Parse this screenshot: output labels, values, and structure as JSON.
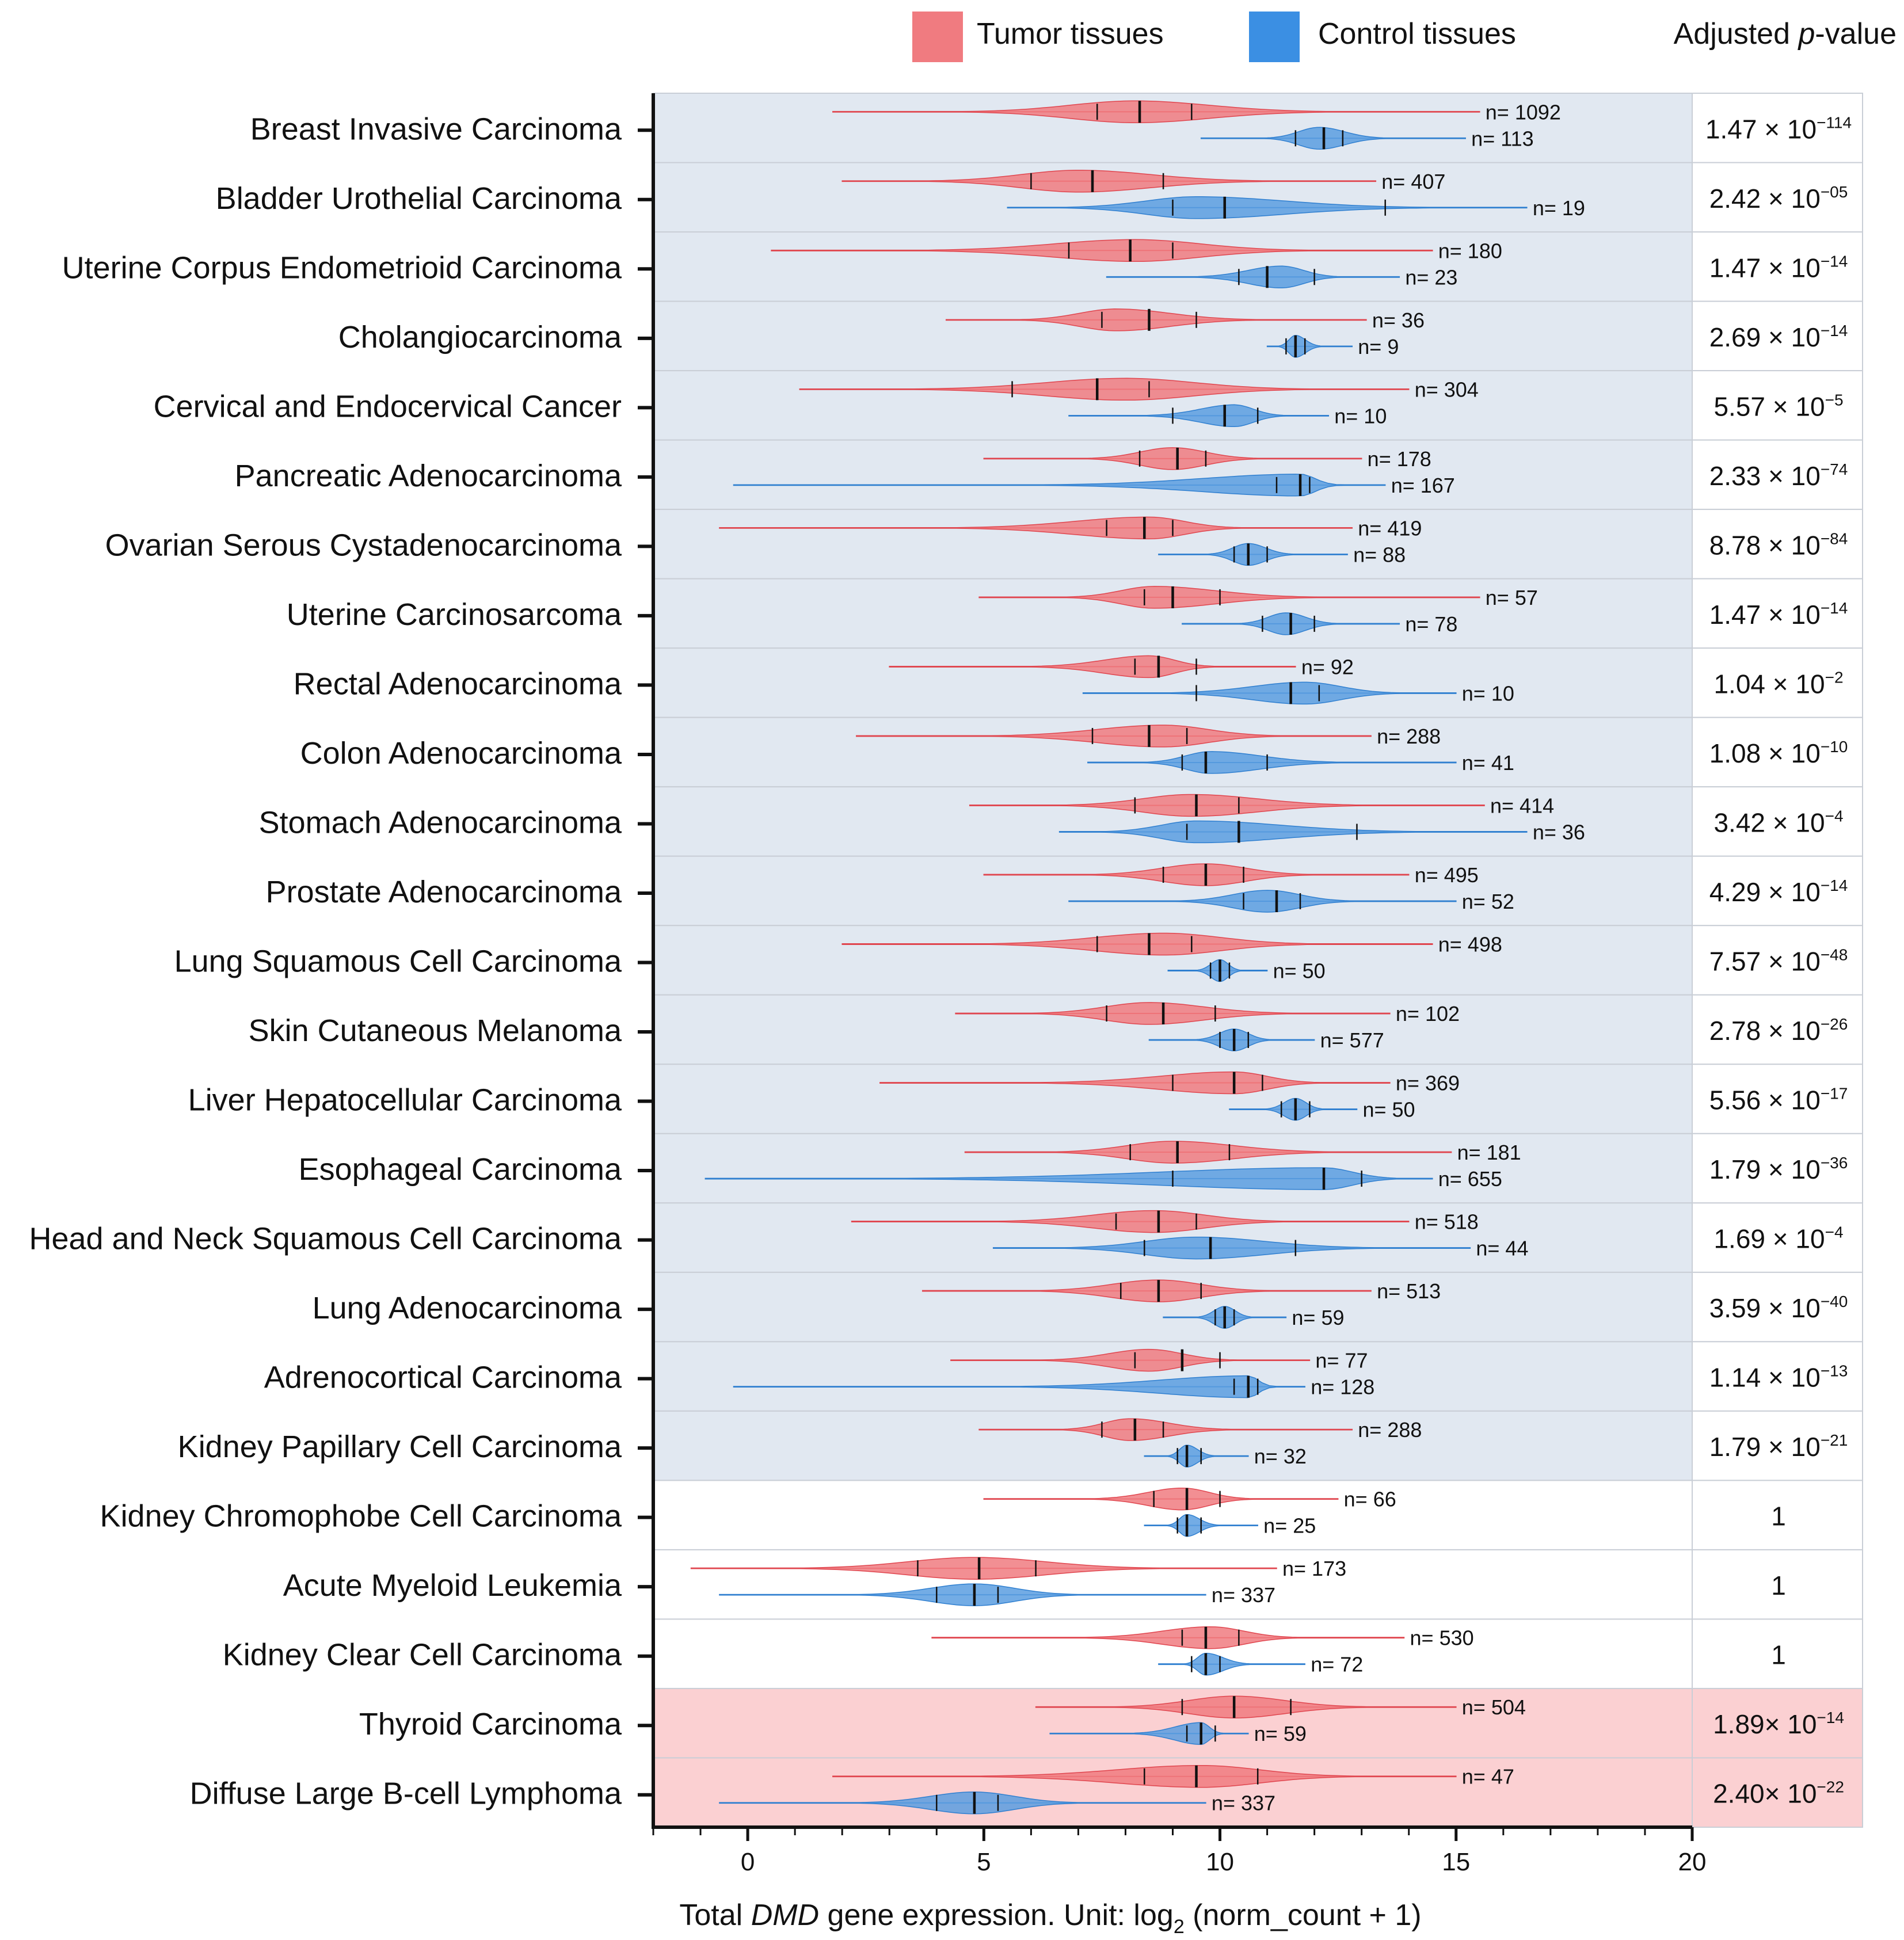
{
  "legend": {
    "tumor_label": "Tumor tissues",
    "control_label": "Control tissues",
    "pvalue_header_prefix": "Adjusted ",
    "pvalue_header_italic": "p",
    "pvalue_header_suffix": "-value"
  },
  "colors": {
    "tumor": "#f07b80",
    "tumor_stroke": "#e0454e",
    "control": "#5b9ee0",
    "control_stroke": "#2f7fd0",
    "band_significant": "#e1e8f1",
    "band_neutral": "#ffffff",
    "band_reverse": "#fbd0d2",
    "grid": "#c9ced6"
  },
  "chart_data": {
    "type": "violin",
    "title": "",
    "xlabel_prefix": "Total ",
    "xlabel_italic": "DMD",
    "xlabel_mid": " gene expression. Unit: log",
    "xlabel_sub": "2",
    "xlabel_suffix": " (norm_count + 1)",
    "xlim": [
      -2,
      20
    ],
    "xticks": [
      0,
      5,
      10,
      15,
      20
    ],
    "legend_position": "top",
    "rows": [
      {
        "name": "Breast Invasive Carcinoma",
        "group": "significant",
        "p": {
          "mant": "1.47",
          "sep": " × 10",
          "exp": "−114"
        },
        "tumor": {
          "n": "n= 1092",
          "min": 1.8,
          "max": 15.5,
          "q1": 7.4,
          "median": 8.3,
          "q3": 9.4,
          "mode": 8.2
        },
        "control": {
          "n": "n= 113",
          "min": 9.6,
          "max": 15.2,
          "q1": 11.6,
          "median": 12.2,
          "q3": 12.6,
          "mode": 12.1
        }
      },
      {
        "name": "Bladder Urothelial Carcinoma ",
        "group": "significant",
        "p": {
          "mant": "2.42",
          "sep": " × 10",
          "exp": "−05"
        },
        "tumor": {
          "n": "n= 407",
          "min": 2.0,
          "max": 13.3,
          "q1": 6.0,
          "median": 7.3,
          "q3": 8.8,
          "mode": 7.0
        },
        "control": {
          "n": "n= 19",
          "min": 5.5,
          "max": 16.5,
          "q1": 9.0,
          "median": 10.1,
          "q3": 13.5,
          "mode": 9.5
        }
      },
      {
        "name": "Uterine Corpus Endometrioid Carcinoma",
        "group": "significant",
        "p": {
          "mant": "1.47",
          "sep": " × 10",
          "exp": "−14"
        },
        "tumor": {
          "n": "n= 180",
          "min": 0.5,
          "max": 14.5,
          "q1": 6.8,
          "median": 8.1,
          "q3": 9.0,
          "mode": 8.2
        },
        "control": {
          "n": "n= 23",
          "min": 7.6,
          "max": 13.8,
          "q1": 10.4,
          "median": 11.0,
          "q3": 12.0,
          "mode": 11.3
        }
      },
      {
        "name": "Cholangiocarcinoma",
        "group": "significant",
        "p": {
          "mant": "2.69",
          "sep": " × 10",
          "exp": "−14"
        },
        "tumor": {
          "n": "n= 36",
          "min": 4.2,
          "max": 13.1,
          "q1": 7.5,
          "median": 8.5,
          "q3": 9.5,
          "mode": 7.8
        },
        "control": {
          "n": "n= 9",
          "min": 11.0,
          "max": 12.8,
          "q1": 11.4,
          "median": 11.6,
          "q3": 11.8,
          "mode": 11.6
        }
      },
      {
        "name": "Cervical and Endocervical Cancer",
        "group": "significant",
        "p": {
          "mant": "5.57",
          "sep": " × 10",
          "exp": "−5"
        },
        "tumor": {
          "n": "n= 304",
          "min": 1.1,
          "max": 14.0,
          "q1": 5.6,
          "median": 7.4,
          "q3": 8.5,
          "mode": 8.0
        },
        "control": {
          "n": "n= 10",
          "min": 6.8,
          "max": 12.3,
          "q1": 9.0,
          "median": 10.1,
          "q3": 10.8,
          "mode": 10.3
        }
      },
      {
        "name": "Pancreatic Adenocarcinoma",
        "group": "significant",
        "p": {
          "mant": "2.33",
          "sep": " × 10",
          "exp": "−74"
        },
        "tumor": {
          "n": "n= 178",
          "min": 5.0,
          "max": 13.0,
          "q1": 8.3,
          "median": 9.1,
          "q3": 9.7,
          "mode": 9.0
        },
        "control": {
          "n": "n= 167",
          "min": -0.3,
          "max": 13.5,
          "q1": 11.2,
          "median": 11.7,
          "q3": 11.9,
          "mode": 11.7
        }
      },
      {
        "name": "Ovarian Serous Cystadenocarcinoma",
        "group": "significant",
        "p": {
          "mant": "8.78",
          "sep": " × 10",
          "exp": "−84"
        },
        "tumor": {
          "n": "n= 419",
          "min": -0.6,
          "max": 12.8,
          "q1": 7.6,
          "median": 8.4,
          "q3": 9.0,
          "mode": 8.5
        },
        "control": {
          "n": "n= 88",
          "min": 8.7,
          "max": 12.7,
          "q1": 10.3,
          "median": 10.6,
          "q3": 11.0,
          "mode": 10.6
        }
      },
      {
        "name": "Uterine Carcinosarcoma",
        "group": "significant",
        "p": {
          "mant": "1.47",
          "sep": " × 10",
          "exp": "−14"
        },
        "tumor": {
          "n": "n= 57",
          "min": 4.9,
          "max": 15.5,
          "q1": 8.4,
          "median": 9.0,
          "q3": 10.0,
          "mode": 8.6
        },
        "control": {
          "n": "n= 78",
          "min": 9.2,
          "max": 13.8,
          "q1": 10.9,
          "median": 11.5,
          "q3": 12.0,
          "mode": 11.4
        }
      },
      {
        "name": "Rectal Adenocarcinoma ",
        "group": "significant",
        "p": {
          "mant": "1.04",
          "sep": " × 10",
          "exp": "−2"
        },
        "tumor": {
          "n": "n= 92",
          "min": 3.0,
          "max": 11.6,
          "q1": 8.2,
          "median": 8.7,
          "q3": 9.5,
          "mode": 8.5
        },
        "control": {
          "n": "n= 10",
          "min": 7.1,
          "max": 15.0,
          "q1": 9.5,
          "median": 11.5,
          "q3": 12.1,
          "mode": 11.8
        }
      },
      {
        "name": "Colon Adenocarcinoma",
        "group": "significant",
        "p": {
          "mant": "1.08",
          "sep": " × 10",
          "exp": "−10"
        },
        "tumor": {
          "n": "n= 288",
          "min": 2.3,
          "max": 13.2,
          "q1": 7.3,
          "median": 8.5,
          "q3": 9.3,
          "mode": 8.8
        },
        "control": {
          "n": "n= 41",
          "min": 7.2,
          "max": 15.0,
          "q1": 9.2,
          "median": 9.7,
          "q3": 11.0,
          "mode": 9.8
        }
      },
      {
        "name": "Stomach Adenocarcinoma",
        "group": "significant",
        "p": {
          "mant": "3.42",
          "sep": " × 10",
          "exp": "−4"
        },
        "tumor": {
          "n": "n= 414",
          "min": 4.7,
          "max": 15.6,
          "q1": 8.2,
          "median": 9.5,
          "q3": 10.4,
          "mode": 9.4
        },
        "control": {
          "n": "n= 36",
          "min": 6.6,
          "max": 16.5,
          "q1": 9.3,
          "median": 10.4,
          "q3": 12.9,
          "mode": 9.5
        }
      },
      {
        "name": "Prostate Adenocarcinoma",
        "group": "significant",
        "p": {
          "mant": "4.29",
          "sep": " × 10",
          "exp": "−14"
        },
        "tumor": {
          "n": "n= 495",
          "min": 5.0,
          "max": 14.0,
          "q1": 8.8,
          "median": 9.7,
          "q3": 10.5,
          "mode": 9.7
        },
        "control": {
          "n": "n= 52",
          "min": 6.8,
          "max": 15.0,
          "q1": 10.5,
          "median": 11.2,
          "q3": 11.7,
          "mode": 11.0
        }
      },
      {
        "name": "Lung Squamous Cell Carcinoma",
        "group": "significant",
        "p": {
          "mant": "7.57",
          "sep": " × 10",
          "exp": "−48"
        },
        "tumor": {
          "n": "n= 498",
          "min": 2.0,
          "max": 14.5,
          "q1": 7.4,
          "median": 8.5,
          "q3": 9.4,
          "mode": 8.8
        },
        "control": {
          "n": "n= 50",
          "min": 8.9,
          "max": 11.0,
          "q1": 9.8,
          "median": 10.0,
          "q3": 10.2,
          "mode": 10.0
        }
      },
      {
        "name": "Skin Cutaneous Melanoma",
        "group": "significant",
        "p": {
          "mant": "2.78",
          "sep": " × 10",
          "exp": "−26"
        },
        "tumor": {
          "n": "n= 102",
          "min": 4.4,
          "max": 13.6,
          "q1": 7.6,
          "median": 8.8,
          "q3": 9.9,
          "mode": 8.5
        },
        "control": {
          "n": "n= 577",
          "min": 8.5,
          "max": 12.0,
          "q1": 10.0,
          "median": 10.3,
          "q3": 10.6,
          "mode": 10.3
        }
      },
      {
        "name": "Liver Hepatocellular Carcinoma",
        "group": "significant",
        "p": {
          "mant": "5.56",
          "sep": " × 10",
          "exp": "−17"
        },
        "tumor": {
          "n": "n= 369",
          "min": 2.8,
          "max": 13.6,
          "q1": 9.0,
          "median": 10.3,
          "q3": 10.9,
          "mode": 10.3
        },
        "control": {
          "n": "n= 50",
          "min": 10.2,
          "max": 12.9,
          "q1": 11.3,
          "median": 11.6,
          "q3": 11.9,
          "mode": 11.6
        }
      },
      {
        "name": "Esophageal Carcinoma",
        "group": "significant",
        "p": {
          "mant": "1.79",
          "sep": " × 10",
          "exp": "−36"
        },
        "tumor": {
          "n": "n= 181",
          "min": 4.6,
          "max": 14.9,
          "q1": 8.1,
          "median": 9.1,
          "q3": 10.2,
          "mode": 9.0
        },
        "control": {
          "n": "n= 655",
          "min": -0.9,
          "max": 14.5,
          "q1": 9.0,
          "median": 12.2,
          "q3": 13.0,
          "mode": 12.2
        }
      },
      {
        "name": "Head and Neck Squamous Cell Carcinoma",
        "group": "significant",
        "p": {
          "mant": "1.69",
          "sep": " × 10",
          "exp": "−4"
        },
        "tumor": {
          "n": "n= 518",
          "min": 2.2,
          "max": 14.0,
          "q1": 7.8,
          "median": 8.7,
          "q3": 9.5,
          "mode": 8.6
        },
        "control": {
          "n": "n= 44",
          "min": 5.2,
          "max": 15.3,
          "q1": 8.4,
          "median": 9.8,
          "q3": 11.6,
          "mode": 9.5
        }
      },
      {
        "name": "Lung Adenocarcinoma",
        "group": "significant",
        "p": {
          "mant": "3.59",
          "sep": " × 10",
          "exp": "−40"
        },
        "tumor": {
          "n": "n= 513",
          "min": 3.7,
          "max": 13.2,
          "q1": 7.9,
          "median": 8.7,
          "q3": 9.6,
          "mode": 8.7
        },
        "control": {
          "n": "n= 59",
          "min": 8.8,
          "max": 11.4,
          "q1": 9.9,
          "median": 10.1,
          "q3": 10.3,
          "mode": 10.1
        }
      },
      {
        "name": "Adrenocortical Carcinoma",
        "group": "significant",
        "p": {
          "mant": "1.14",
          "sep": " × 10",
          "exp": "−13"
        },
        "tumor": {
          "n": "n= 77",
          "min": 4.3,
          "max": 11.9,
          "q1": 8.2,
          "median": 9.2,
          "q3": 10.0,
          "mode": 8.5
        },
        "control": {
          "n": "n= 128",
          "min": -0.3,
          "max": 11.8,
          "q1": 10.3,
          "median": 10.6,
          "q3": 10.8,
          "mode": 10.6
        }
      },
      {
        "name": "Kidney Papillary Cell Carcinoma",
        "group": "significant",
        "p": {
          "mant": "1.79",
          "sep": " × 10",
          "exp": "−21"
        },
        "tumor": {
          "n": "n= 288",
          "min": 4.9,
          "max": 12.8,
          "q1": 7.5,
          "median": 8.2,
          "q3": 8.8,
          "mode": 8.1
        },
        "control": {
          "n": "n= 32",
          "min": 8.4,
          "max": 10.6,
          "q1": 9.1,
          "median": 9.3,
          "q3": 9.6,
          "mode": 9.3
        }
      },
      {
        "name": "Kidney Chromophobe Cell Carcinoma",
        "group": "neutral",
        "p": {
          "mant": "1",
          "sep": "",
          "exp": ""
        },
        "tumor": {
          "n": "n= 66",
          "min": 5.0,
          "max": 12.5,
          "q1": 8.6,
          "median": 9.3,
          "q3": 10.0,
          "mode": 9.2
        },
        "control": {
          "n": "n= 25",
          "min": 8.4,
          "max": 10.8,
          "q1": 9.1,
          "median": 9.3,
          "q3": 9.6,
          "mode": 9.3
        }
      },
      {
        "name": "Acute Myeloid Leukemia",
        "group": "neutral",
        "p": {
          "mant": "1",
          "sep": "",
          "exp": ""
        },
        "tumor": {
          "n": "n= 173",
          "min": -1.2,
          "max": 11.2,
          "q1": 3.6,
          "median": 4.9,
          "q3": 6.1,
          "mode": 4.8
        },
        "control": {
          "n": "n= 337",
          "min": -0.6,
          "max": 9.7,
          "q1": 4.0,
          "median": 4.8,
          "q3": 5.3,
          "mode": 4.8
        }
      },
      {
        "name": "Kidney Clear Cell Carcinoma",
        "group": "neutral",
        "p": {
          "mant": "1",
          "sep": "",
          "exp": ""
        },
        "tumor": {
          "n": "n= 530",
          "min": 3.9,
          "max": 13.9,
          "q1": 9.2,
          "median": 9.7,
          "q3": 10.4,
          "mode": 9.8
        },
        "control": {
          "n": "n= 72",
          "min": 8.7,
          "max": 11.8,
          "q1": 9.4,
          "median": 9.7,
          "q3": 10.0,
          "mode": 9.7
        }
      },
      {
        "name": "Thyroid Carcinoma",
        "group": "reverse",
        "p": {
          "mant": "1.89",
          "sep": "× 10",
          "exp": "−14"
        },
        "tumor": {
          "n": "n= 504",
          "min": 6.1,
          "max": 15.0,
          "q1": 9.2,
          "median": 10.3,
          "q3": 11.5,
          "mode": 10.3
        },
        "control": {
          "n": "n= 59",
          "min": 6.4,
          "max": 10.6,
          "q1": 9.3,
          "median": 9.6,
          "q3": 9.9,
          "mode": 9.6
        }
      },
      {
        "name": "Diffuse Large B-cell Lymphoma",
        "group": "reverse",
        "p": {
          "mant": "2.40",
          "sep": "× 10",
          "exp": "−22"
        },
        "tumor": {
          "n": "n= 47",
          "min": 1.8,
          "max": 15.0,
          "q1": 8.4,
          "median": 9.5,
          "q3": 10.8,
          "mode": 9.6
        },
        "control": {
          "n": "n= 337",
          "min": -0.6,
          "max": 9.7,
          "q1": 4.0,
          "median": 4.8,
          "q3": 5.3,
          "mode": 4.8
        }
      }
    ]
  }
}
